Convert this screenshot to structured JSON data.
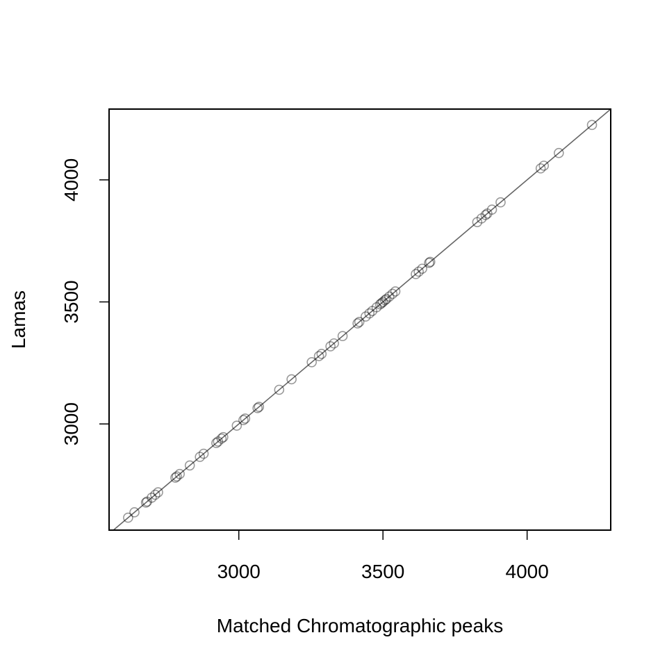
{
  "chart_data": {
    "type": "scatter",
    "title": "",
    "xlabel": "Matched Chromatographic peaks",
    "ylabel": "Lamas",
    "xlim": [
      2550,
      4290
    ],
    "ylim": [
      2565,
      4290
    ],
    "x_ticks": [
      "3000",
      "3500",
      "4000"
    ],
    "y_ticks": [
      "3000",
      "3500",
      "4000"
    ],
    "x_tick_values": [
      3000,
      3500,
      4000
    ],
    "y_tick_values": [
      3000,
      3500,
      4000
    ],
    "reference_line": {
      "slope": 1,
      "intercept": 0,
      "color": "#666666"
    },
    "grid": false,
    "point_color": "#000000",
    "point_opacity": 0.4,
    "points": [
      [
        2616,
        2616
      ],
      [
        2638,
        2638
      ],
      [
        2678,
        2678
      ],
      [
        2682,
        2682
      ],
      [
        2698,
        2698
      ],
      [
        2710,
        2710
      ],
      [
        2720,
        2720
      ],
      [
        2780,
        2780
      ],
      [
        2785,
        2785
      ],
      [
        2795,
        2795
      ],
      [
        2830,
        2830
      ],
      [
        2865,
        2865
      ],
      [
        2878,
        2878
      ],
      [
        2922,
        2922
      ],
      [
        2928,
        2928
      ],
      [
        2940,
        2940
      ],
      [
        2946,
        2946
      ],
      [
        2993,
        2993
      ],
      [
        3016,
        3016
      ],
      [
        3022,
        3022
      ],
      [
        3065,
        3065
      ],
      [
        3070,
        3070
      ],
      [
        3140,
        3140
      ],
      [
        3183,
        3183
      ],
      [
        3253,
        3253
      ],
      [
        3278,
        3278
      ],
      [
        3287,
        3287
      ],
      [
        3318,
        3318
      ],
      [
        3330,
        3330
      ],
      [
        3360,
        3360
      ],
      [
        3412,
        3412
      ],
      [
        3418,
        3418
      ],
      [
        3440,
        3440
      ],
      [
        3453,
        3453
      ],
      [
        3463,
        3463
      ],
      [
        3478,
        3478
      ],
      [
        3490,
        3490
      ],
      [
        3495,
        3495
      ],
      [
        3500,
        3500
      ],
      [
        3507,
        3507
      ],
      [
        3512,
        3512
      ],
      [
        3522,
        3522
      ],
      [
        3533,
        3533
      ],
      [
        3543,
        3543
      ],
      [
        3614,
        3614
      ],
      [
        3624,
        3624
      ],
      [
        3636,
        3636
      ],
      [
        3660,
        3660
      ],
      [
        3664,
        3664
      ],
      [
        3827,
        3827
      ],
      [
        3842,
        3842
      ],
      [
        3856,
        3856
      ],
      [
        3862,
        3862
      ],
      [
        3878,
        3878
      ],
      [
        3908,
        3908
      ],
      [
        4047,
        4047
      ],
      [
        4058,
        4058
      ],
      [
        4110,
        4110
      ],
      [
        4225,
        4225
      ]
    ]
  }
}
